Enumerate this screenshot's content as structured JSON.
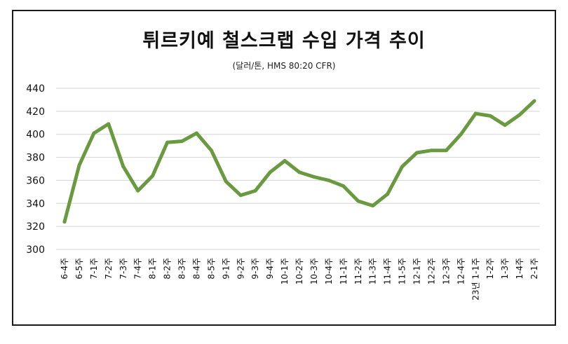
{
  "chart_data": {
    "type": "line",
    "title": "튀르키예 철스크랩 수입 가격 추이",
    "subtitle": "(달러/톤, HMS 80:20  CFR)",
    "xlabel": "",
    "ylabel": "",
    "ylim": [
      300,
      440
    ],
    "yticks": [
      300,
      320,
      340,
      360,
      380,
      400,
      420,
      440
    ],
    "grid": true,
    "legend": "none",
    "categories": [
      "6-4주",
      "6-5주",
      "7-1주",
      "7-2주",
      "7-3주",
      "7-4주",
      "8-1주",
      "8-2주",
      "8-3주",
      "8-4주",
      "8-5주",
      "9-1주",
      "9-2주",
      "9-3주",
      "9-4주",
      "10-1주",
      "10-2주",
      "10-3주",
      "10-4주",
      "11-1주",
      "11-2주",
      "11-3주",
      "11-4주",
      "11-5주",
      "12-1주",
      "12-2주",
      "12-3주",
      "12-4주",
      "23년 1-1주",
      "1-2주",
      "1-3주",
      "1-4주",
      "2-1주"
    ],
    "series": [
      {
        "name": "HMS 80:20 CFR",
        "color": "#6a9a3f",
        "values": [
          324,
          373,
          401,
          409,
          372,
          351,
          364,
          393,
          394,
          401,
          386,
          359,
          347,
          351,
          367,
          377,
          367,
          363,
          360,
          355,
          342,
          338,
          348,
          372,
          384,
          386,
          386,
          400,
          418,
          416,
          408,
          417,
          429
        ]
      }
    ]
  }
}
